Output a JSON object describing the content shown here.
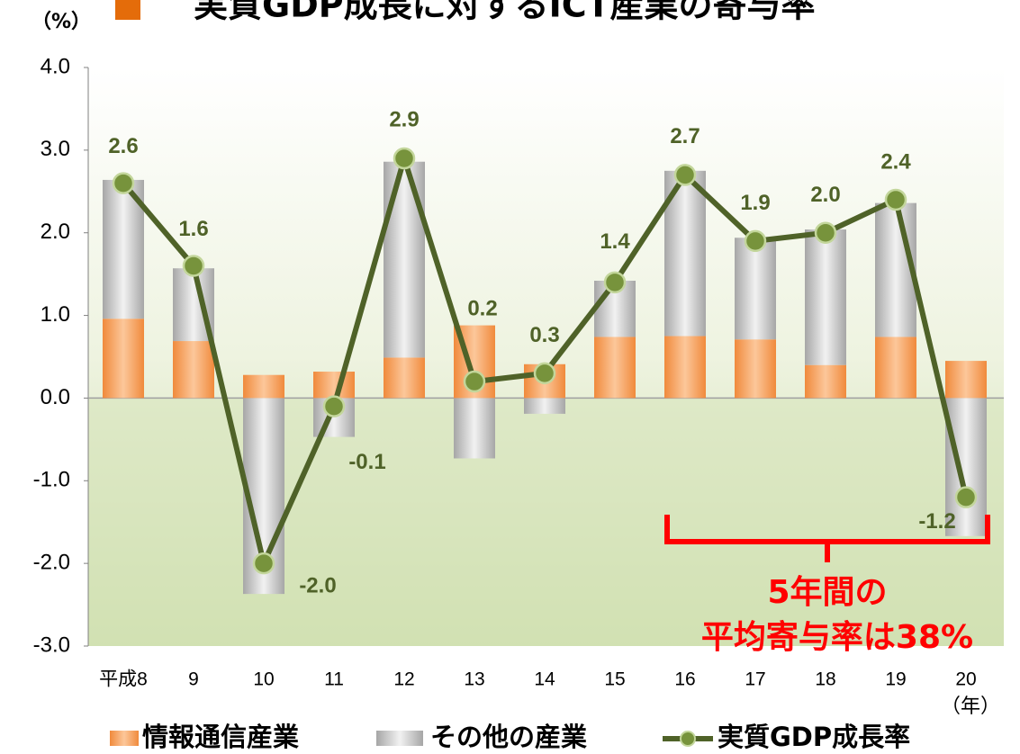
{
  "chart_data": {
    "type": "bar",
    "title": "実質GDP成長に対するICT産業の寄与率",
    "y_unit": "（%）",
    "x_unit": "（年）",
    "categories": [
      "平成8",
      "9",
      "10",
      "11",
      "12",
      "13",
      "14",
      "15",
      "16",
      "17",
      "18",
      "19",
      "20"
    ],
    "series": [
      {
        "name": "情報通信産業",
        "type": "bar",
        "color": "#f08a3c",
        "values": [
          0.96,
          0.69,
          0.28,
          0.32,
          0.49,
          0.88,
          0.41,
          0.74,
          0.75,
          0.71,
          0.4,
          0.74,
          0.45
        ]
      },
      {
        "name": "その他の産業",
        "type": "bar",
        "color": "#bfbfbf",
        "values": [
          1.68,
          0.88,
          -2.37,
          -0.47,
          2.37,
          -0.73,
          -0.19,
          0.68,
          2.0,
          1.23,
          1.64,
          1.62,
          -1.67
        ]
      },
      {
        "name": "実質GDP成長率",
        "type": "line",
        "color": "#4f6228",
        "values": [
          2.6,
          1.6,
          -2.0,
          -0.1,
          2.9,
          0.2,
          0.3,
          1.4,
          2.7,
          1.9,
          2.0,
          2.4,
          -1.2
        ],
        "value_labels": [
          "2.6",
          "1.6",
          "-2.0",
          "-0.1",
          "2.9",
          "0.2",
          "0.3",
          "1.4",
          "2.7",
          "1.9",
          "2.0",
          "2.4",
          "-1.2"
        ]
      }
    ],
    "ylim": [
      -3,
      4
    ],
    "yticks": [
      {
        "value": -3,
        "label": "-3.0"
      },
      {
        "value": -2,
        "label": "-2.0"
      },
      {
        "value": -1,
        "label": "-1.0"
      },
      {
        "value": 0,
        "label": "0.0"
      },
      {
        "value": 1,
        "label": "1.0"
      },
      {
        "value": 2,
        "label": "2.0"
      },
      {
        "value": 3,
        "label": "3.0"
      },
      {
        "value": 4,
        "label": "4.0"
      }
    ],
    "annotations": [
      "5年間の",
      "平均寄与率は38%"
    ]
  }
}
